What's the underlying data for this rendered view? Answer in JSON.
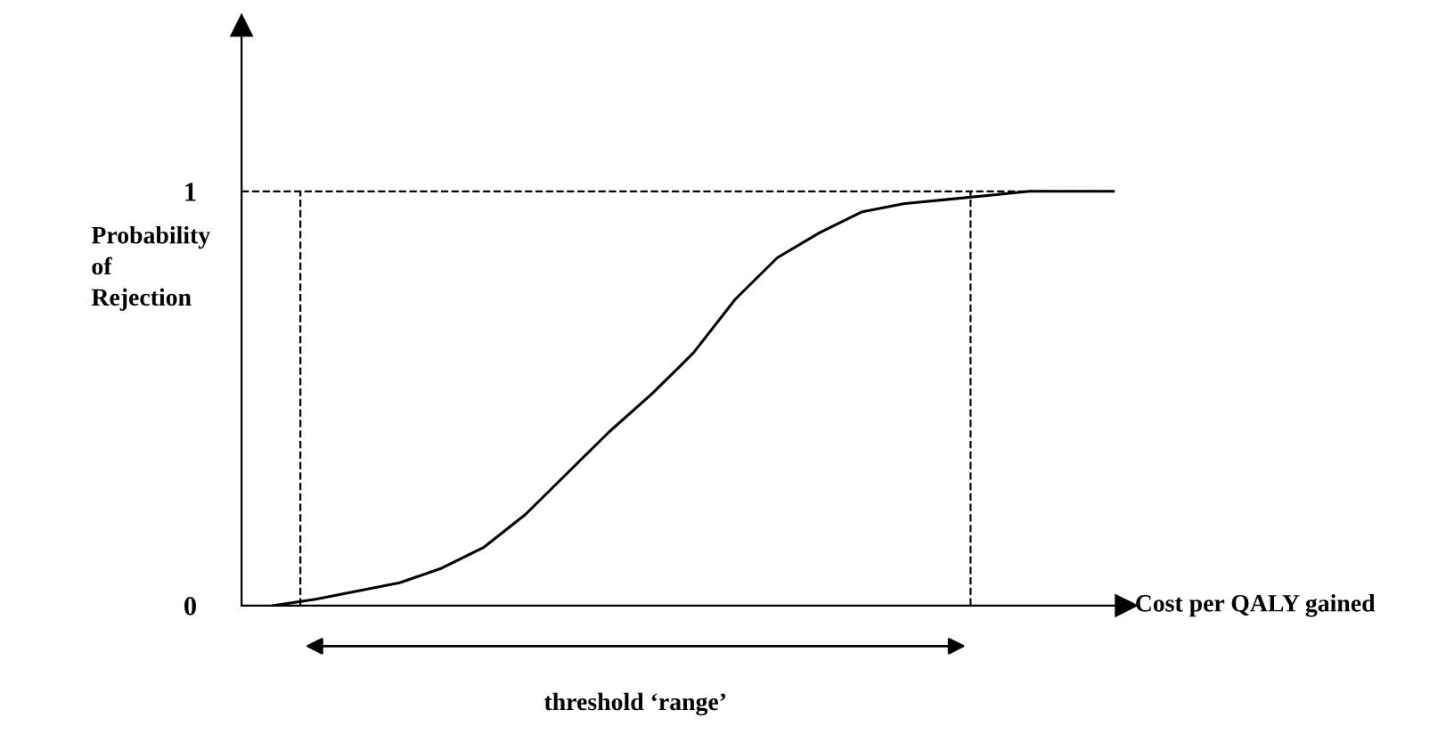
{
  "chart_data": {
    "type": "line",
    "xlabel": "Cost per QALY gained",
    "ylabel": "Probability\nof\nRejection",
    "categories": [
      null,
      null,
      null,
      null,
      null,
      null,
      null,
      null,
      null,
      null,
      null,
      null,
      null,
      null,
      null,
      null,
      null,
      null,
      null,
      null,
      null
    ],
    "series": [
      {
        "color": "#000000",
        "values": [
          0,
          0.015,
          0.035,
          0.055,
          0.09,
          0.14,
          0.22,
          0.32,
          0.42,
          0.51,
          0.61,
          0.74,
          0.84,
          0.9,
          0.95,
          0.97,
          0.98,
          0.99,
          1.0,
          1.0,
          1.0
        ]
      }
    ],
    "ylim": [
      0,
      1.4
    ],
    "yticks": [
      0,
      1
    ],
    "tick_labels": "y",
    "grid": false,
    "marker": "none",
    "line_style": "solid",
    "ref_lines": [
      {
        "axis": "y",
        "value": 1,
        "line_style": "dashed",
        "color": "#000000"
      }
    ],
    "annotations": [
      "threshold ‘range’"
    ]
  }
}
